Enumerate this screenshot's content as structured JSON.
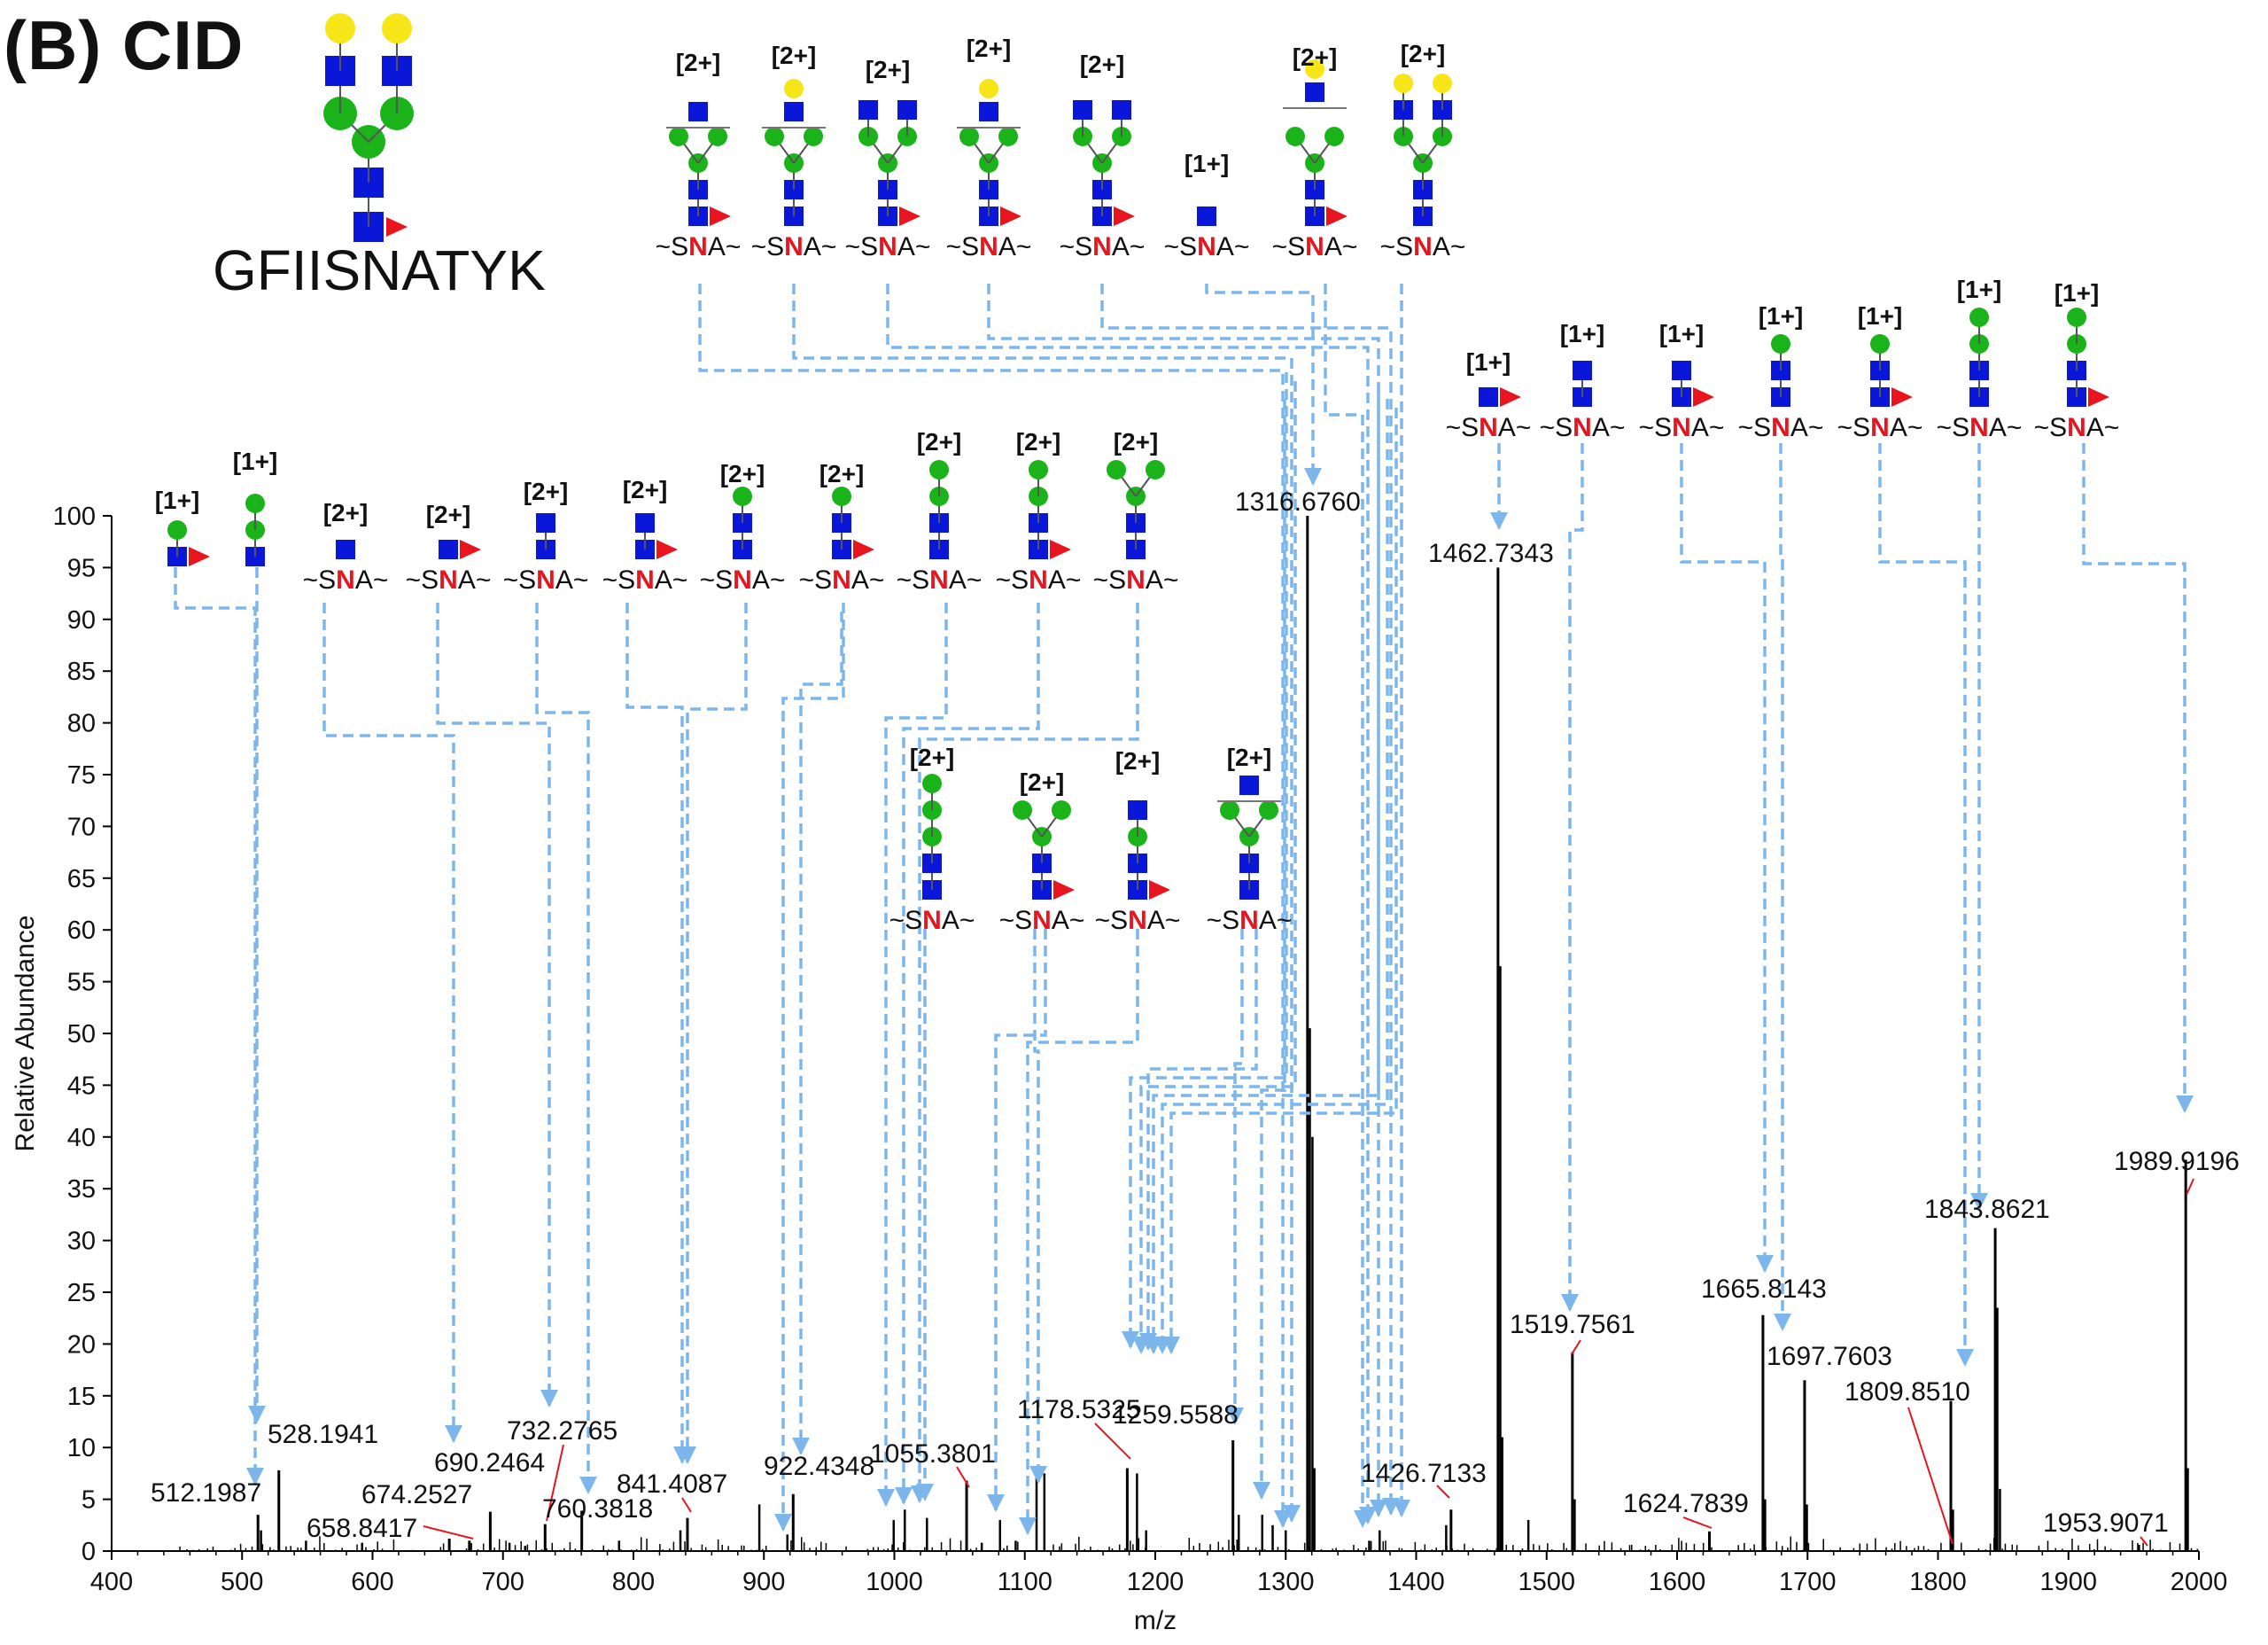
{
  "panel": {
    "title": "(B) CID",
    "peptide": "GFIISNATYK",
    "technique": "CID"
  },
  "chart_data": {
    "type": "bar",
    "title": "(B) CID",
    "xlabel": "m/z",
    "ylabel": "Relative Abundance",
    "xlim": [
      400,
      2000
    ],
    "ylim": [
      0,
      100
    ],
    "xticks": [
      400,
      500,
      600,
      700,
      800,
      900,
      1000,
      1100,
      1200,
      1300,
      1400,
      1500,
      1600,
      1700,
      1800,
      1900,
      2000
    ],
    "yticks": [
      0,
      5,
      10,
      15,
      20,
      25,
      30,
      35,
      40,
      45,
      50,
      55,
      60,
      65,
      70,
      75,
      80,
      85,
      90,
      95,
      100
    ],
    "labeled_peaks": [
      {
        "mz": 512.1987,
        "label": "512.1987",
        "intensity": 3.5
      },
      {
        "mz": 528.1941,
        "label": "528.1941",
        "intensity": 7.8
      },
      {
        "mz": 658.8417,
        "label": "658.8417",
        "intensity": 1.2
      },
      {
        "mz": 674.2527,
        "label": "674.2527",
        "intensity": 1.0
      },
      {
        "mz": 690.2464,
        "label": "690.2464",
        "intensity": 3.8
      },
      {
        "mz": 732.2765,
        "label": "732.2765",
        "intensity": 2.6
      },
      {
        "mz": 760.3818,
        "label": "760.3818",
        "intensity": 3.9
      },
      {
        "mz": 841.4087,
        "label": "841.4087",
        "intensity": 3.2
      },
      {
        "mz": 922.4348,
        "label": "922.4348",
        "intensity": 5.5
      },
      {
        "mz": 1055.3801,
        "label": "1055.3801",
        "intensity": 6.8
      },
      {
        "mz": 1178.5325,
        "label": "1178.5325",
        "intensity": 8.0
      },
      {
        "mz": 1259.5588,
        "label": "1259.5588",
        "intensity": 10.7
      },
      {
        "mz": 1316.676,
        "label": "1316.6760",
        "intensity": 100
      },
      {
        "mz": 1426.7133,
        "label": "1426.7133",
        "intensity": 4.0
      },
      {
        "mz": 1462.7343,
        "label": "1462.7343",
        "intensity": 95
      },
      {
        "mz": 1519.7561,
        "label": "1519.7561",
        "intensity": 19.2
      },
      {
        "mz": 1624.7839,
        "label": "1624.7839",
        "intensity": 1.9
      },
      {
        "mz": 1665.8143,
        "label": "1665.8143",
        "intensity": 22.8
      },
      {
        "mz": 1697.7603,
        "label": "1697.7603",
        "intensity": 16.5
      },
      {
        "mz": 1809.851,
        "label": "1809.8510",
        "intensity": 14.5
      },
      {
        "mz": 1843.8621,
        "label": "1843.8621",
        "intensity": 31.2
      },
      {
        "mz": 1953.9071,
        "label": "1953.9071",
        "intensity": 0.6
      },
      {
        "mz": 1989.9196,
        "label": "1989.9196",
        "intensity": 37.8
      }
    ],
    "other_peaks": [
      {
        "mz": 514.5,
        "intensity": 2.0
      },
      {
        "mz": 549.0,
        "intensity": 1.0
      },
      {
        "mz": 592.0,
        "intensity": 0.8
      },
      {
        "mz": 705.0,
        "intensity": 0.8
      },
      {
        "mz": 717.0,
        "intensity": 0.5
      },
      {
        "mz": 789.0,
        "intensity": 1.0
      },
      {
        "mz": 836.0,
        "intensity": 2.0
      },
      {
        "mz": 896.5,
        "intensity": 4.5
      },
      {
        "mz": 918.0,
        "intensity": 1.6
      },
      {
        "mz": 999.5,
        "intensity": 3.0
      },
      {
        "mz": 1008.0,
        "intensity": 4.0
      },
      {
        "mz": 1025.0,
        "intensity": 3.2
      },
      {
        "mz": 1067.0,
        "intensity": 0.8
      },
      {
        "mz": 1081.0,
        "intensity": 3.0
      },
      {
        "mz": 1093.0,
        "intensity": 1.0
      },
      {
        "mz": 1109.0,
        "intensity": 8.0
      },
      {
        "mz": 1115.0,
        "intensity": 7.5
      },
      {
        "mz": 1186.0,
        "intensity": 7.5
      },
      {
        "mz": 1193.0,
        "intensity": 2.0
      },
      {
        "mz": 1264.0,
        "intensity": 3.5
      },
      {
        "mz": 1282.0,
        "intensity": 3.5
      },
      {
        "mz": 1290.0,
        "intensity": 2.5
      },
      {
        "mz": 1300.0,
        "intensity": 2.0
      },
      {
        "mz": 1318.5,
        "intensity": 50.5
      },
      {
        "mz": 1320.5,
        "intensity": 40.0
      },
      {
        "mz": 1322.0,
        "intensity": 8.0
      },
      {
        "mz": 1364.0,
        "intensity": 1.0
      },
      {
        "mz": 1372.0,
        "intensity": 2.0
      },
      {
        "mz": 1423.0,
        "intensity": 2.5
      },
      {
        "mz": 1464.5,
        "intensity": 56.5
      },
      {
        "mz": 1466.0,
        "intensity": 11.0
      },
      {
        "mz": 1486.0,
        "intensity": 3.0
      },
      {
        "mz": 1521.5,
        "intensity": 5.0
      },
      {
        "mz": 1667.5,
        "intensity": 5.0
      },
      {
        "mz": 1699.5,
        "intensity": 4.5
      },
      {
        "mz": 1811.5,
        "intensity": 4.0
      },
      {
        "mz": 1845.5,
        "intensity": 23.5
      },
      {
        "mz": 1847.5,
        "intensity": 6.0
      },
      {
        "mz": 1991.5,
        "intensity": 8.0
      }
    ],
    "fragment_charges": {
      "top_row": [
        "[2+]",
        "[2+]",
        "[2+]",
        "[2+]",
        "[2+]",
        "[1+]",
        "[2+]",
        "[2+]"
      ],
      "right_row": [
        "[1+]",
        "[1+]",
        "[1+]",
        "[1+]",
        "[1+]",
        "[1+]",
        "[1+]"
      ],
      "left_row": [
        "[1+]",
        "[1+]",
        "[2+]",
        "[2+]",
        "[2+]",
        "[2+]",
        "[2+]",
        "[2+]",
        "[2+]",
        "[2+]",
        "[2+]"
      ],
      "middle_row": [
        "[2+]",
        "[2+]",
        "[2+]",
        "[2+]"
      ]
    },
    "peptide_stub": {
      "prefix": "~S",
      "n": "N",
      "suffix": "A~"
    },
    "colors": {
      "arrow": "#7db6ea",
      "label_leader": "#e8141e",
      "hexnac": "#0a17d8",
      "hexose_man": "#1ab41a",
      "galactose": "#f6e617",
      "fucose": "#e8141e",
      "stick": "#000000"
    }
  }
}
